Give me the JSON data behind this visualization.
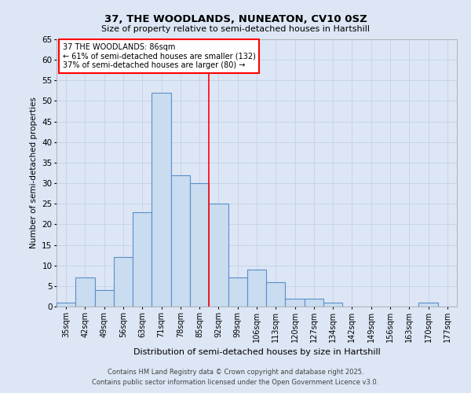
{
  "title1": "37, THE WOODLANDS, NUNEATON, CV10 0SZ",
  "title2": "Size of property relative to semi-detached houses in Hartshill",
  "xlabel": "Distribution of semi-detached houses by size in Hartshill",
  "ylabel": "Number of semi-detached properties",
  "categories": [
    "35sqm",
    "42sqm",
    "49sqm",
    "56sqm",
    "63sqm",
    "71sqm",
    "78sqm",
    "85sqm",
    "92sqm",
    "99sqm",
    "106sqm",
    "113sqm",
    "120sqm",
    "127sqm",
    "134sqm",
    "142sqm",
    "149sqm",
    "156sqm",
    "163sqm",
    "170sqm",
    "177sqm"
  ],
  "values": [
    1,
    7,
    4,
    12,
    23,
    52,
    32,
    30,
    25,
    7,
    9,
    6,
    2,
    2,
    1,
    0,
    0,
    0,
    0,
    1,
    0
  ],
  "bar_color": "#c9dcf0",
  "bar_edge_color": "#5b8fc9",
  "grid_color": "#c8d4e8",
  "background_color": "#dce6f5",
  "vline_bin_index": 7.5,
  "annotation_line1": "37 THE WOODLANDS: 86sqm",
  "annotation_line2": "← 61% of semi-detached houses are smaller (132)",
  "annotation_line3": "37% of semi-detached houses are larger (80) →",
  "footer": "Contains HM Land Registry data © Crown copyright and database right 2025.\nContains public sector information licensed under the Open Government Licence v3.0.",
  "ylim": [
    0,
    65
  ],
  "yticks": [
    0,
    5,
    10,
    15,
    20,
    25,
    30,
    35,
    40,
    45,
    50,
    55,
    60,
    65
  ]
}
